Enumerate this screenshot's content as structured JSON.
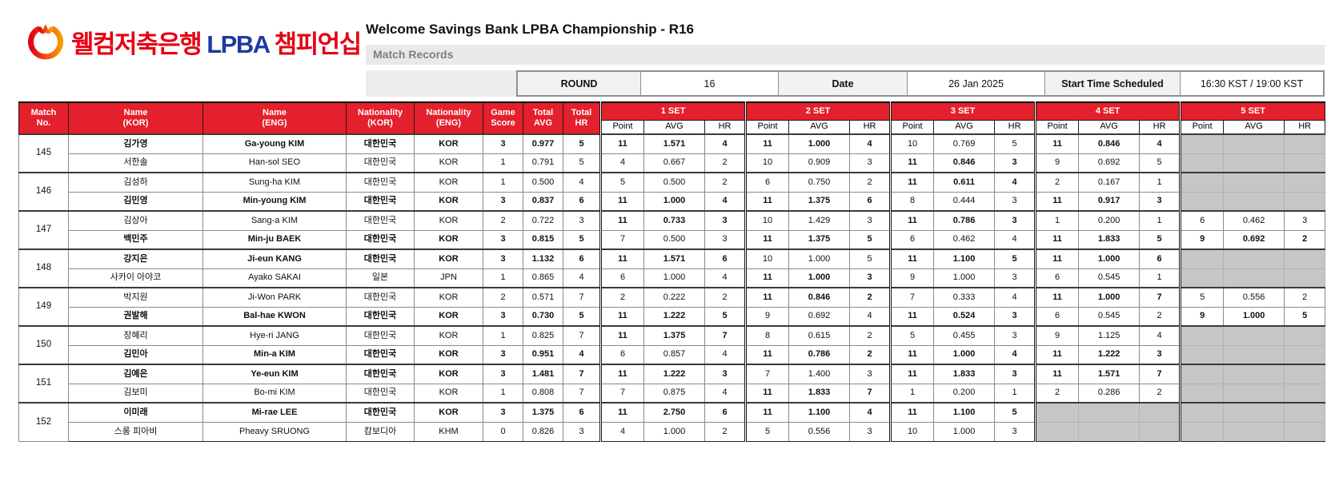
{
  "colors": {
    "header_red": "#e4202c",
    "logo_red": "#e60013",
    "logo_blue": "#1d3aa0",
    "empty_cell_gray": "#c6c6c6",
    "subtitle_gray_bg": "#e9e9e9"
  },
  "logo": {
    "icon": "welcome-bank-w-circle-icon",
    "kor_left": "웰컴저축은행",
    "lpba": "LPBA",
    "kor_right": "챔피언십"
  },
  "header": {
    "title": "Welcome Savings Bank LPBA Championship - R16",
    "subtitle": "Match Records"
  },
  "info_bar": {
    "round_label": "ROUND",
    "round_value": "16",
    "date_label": "Date",
    "date_value": "26 Jan 2025",
    "start_label": "Start Time Scheduled",
    "start_value": "16:30 KST / 19:00 KST"
  },
  "table": {
    "columns": {
      "match_no": "Match\nNo.",
      "name_kor": "Name\n(KOR)",
      "name_eng": "Name\n(ENG)",
      "nat_kor": "Nationality\n(KOR)",
      "nat_eng": "Nationality\n(ENG)",
      "game_score": "Game\nScore",
      "total_avg": "Total\nAVG",
      "total_hr": "Total\nHR"
    },
    "set_headers": [
      "1 SET",
      "2 SET",
      "3 SET",
      "4 SET",
      "5 SET"
    ],
    "sub_headers": [
      "Point",
      "AVG",
      "HR"
    ],
    "matches": [
      {
        "no": "145",
        "players": [
          {
            "name_kor": "김가영",
            "name_eng": "Ga-young KIM",
            "nat_kor": "대한민국",
            "nat_eng": "KOR",
            "game_score": "3",
            "total_avg": "0.977",
            "total_hr": "5",
            "winner": true,
            "sets": [
              {
                "point": "11",
                "avg": "1.571",
                "hr": "4",
                "win": true
              },
              {
                "point": "11",
                "avg": "1.000",
                "hr": "4",
                "win": true
              },
              {
                "point": "10",
                "avg": "0.769",
                "hr": "5",
                "win": false
              },
              {
                "point": "11",
                "avg": "0.846",
                "hr": "4",
                "win": true
              },
              null
            ]
          },
          {
            "name_kor": "서한솔",
            "name_eng": "Han-sol SEO",
            "nat_kor": "대한민국",
            "nat_eng": "KOR",
            "game_score": "1",
            "total_avg": "0.791",
            "total_hr": "5",
            "winner": false,
            "sets": [
              {
                "point": "4",
                "avg": "0.667",
                "hr": "2",
                "win": false
              },
              {
                "point": "10",
                "avg": "0.909",
                "hr": "3",
                "win": false
              },
              {
                "point": "11",
                "avg": "0.846",
                "hr": "3",
                "win": true
              },
              {
                "point": "9",
                "avg": "0.692",
                "hr": "5",
                "win": false
              },
              null
            ]
          }
        ]
      },
      {
        "no": "146",
        "players": [
          {
            "name_kor": "김성하",
            "name_eng": "Sung-ha KIM",
            "nat_kor": "대한민국",
            "nat_eng": "KOR",
            "game_score": "1",
            "total_avg": "0.500",
            "total_hr": "4",
            "winner": false,
            "sets": [
              {
                "point": "5",
                "avg": "0.500",
                "hr": "2",
                "win": false
              },
              {
                "point": "6",
                "avg": "0.750",
                "hr": "2",
                "win": false
              },
              {
                "point": "11",
                "avg": "0.611",
                "hr": "4",
                "win": true
              },
              {
                "point": "2",
                "avg": "0.167",
                "hr": "1",
                "win": false
              },
              null
            ]
          },
          {
            "name_kor": "김민영",
            "name_eng": "Min-young KIM",
            "nat_kor": "대한민국",
            "nat_eng": "KOR",
            "game_score": "3",
            "total_avg": "0.837",
            "total_hr": "6",
            "winner": true,
            "sets": [
              {
                "point": "11",
                "avg": "1.000",
                "hr": "4",
                "win": true
              },
              {
                "point": "11",
                "avg": "1.375",
                "hr": "6",
                "win": true
              },
              {
                "point": "8",
                "avg": "0.444",
                "hr": "3",
                "win": false
              },
              {
                "point": "11",
                "avg": "0.917",
                "hr": "3",
                "win": true
              },
              null
            ]
          }
        ]
      },
      {
        "no": "147",
        "players": [
          {
            "name_kor": "김상아",
            "name_eng": "Sang-a KIM",
            "nat_kor": "대한민국",
            "nat_eng": "KOR",
            "game_score": "2",
            "total_avg": "0.722",
            "total_hr": "3",
            "winner": false,
            "sets": [
              {
                "point": "11",
                "avg": "0.733",
                "hr": "3",
                "win": true
              },
              {
                "point": "10",
                "avg": "1.429",
                "hr": "3",
                "win": false
              },
              {
                "point": "11",
                "avg": "0.786",
                "hr": "3",
                "win": true
              },
              {
                "point": "1",
                "avg": "0.200",
                "hr": "1",
                "win": false
              },
              {
                "point": "6",
                "avg": "0.462",
                "hr": "3",
                "win": false
              }
            ]
          },
          {
            "name_kor": "백민주",
            "name_eng": "Min-ju BAEK",
            "nat_kor": "대한민국",
            "nat_eng": "KOR",
            "game_score": "3",
            "total_avg": "0.815",
            "total_hr": "5",
            "winner": true,
            "sets": [
              {
                "point": "7",
                "avg": "0.500",
                "hr": "3",
                "win": false
              },
              {
                "point": "11",
                "avg": "1.375",
                "hr": "5",
                "win": true
              },
              {
                "point": "6",
                "avg": "0.462",
                "hr": "4",
                "win": false
              },
              {
                "point": "11",
                "avg": "1.833",
                "hr": "5",
                "win": true
              },
              {
                "point": "9",
                "avg": "0.692",
                "hr": "2",
                "win": true
              }
            ]
          }
        ]
      },
      {
        "no": "148",
        "players": [
          {
            "name_kor": "강지은",
            "name_eng": "Ji-eun KANG",
            "nat_kor": "대한민국",
            "nat_eng": "KOR",
            "game_score": "3",
            "total_avg": "1.132",
            "total_hr": "6",
            "winner": true,
            "sets": [
              {
                "point": "11",
                "avg": "1.571",
                "hr": "6",
                "win": true
              },
              {
                "point": "10",
                "avg": "1.000",
                "hr": "5",
                "win": false
              },
              {
                "point": "11",
                "avg": "1.100",
                "hr": "5",
                "win": true
              },
              {
                "point": "11",
                "avg": "1.000",
                "hr": "6",
                "win": true
              },
              null
            ]
          },
          {
            "name_kor": "사카이 아야코",
            "name_eng": "Ayako SAKAI",
            "nat_kor": "일본",
            "nat_eng": "JPN",
            "game_score": "1",
            "total_avg": "0.865",
            "total_hr": "4",
            "winner": false,
            "sets": [
              {
                "point": "6",
                "avg": "1.000",
                "hr": "4",
                "win": false
              },
              {
                "point": "11",
                "avg": "1.000",
                "hr": "3",
                "win": true
              },
              {
                "point": "9",
                "avg": "1.000",
                "hr": "3",
                "win": false
              },
              {
                "point": "6",
                "avg": "0.545",
                "hr": "1",
                "win": false
              },
              null
            ]
          }
        ]
      },
      {
        "no": "149",
        "players": [
          {
            "name_kor": "박지원",
            "name_eng": "Ji-Won PARK",
            "nat_kor": "대한민국",
            "nat_eng": "KOR",
            "game_score": "2",
            "total_avg": "0.571",
            "total_hr": "7",
            "winner": false,
            "sets": [
              {
                "point": "2",
                "avg": "0.222",
                "hr": "2",
                "win": false
              },
              {
                "point": "11",
                "avg": "0.846",
                "hr": "2",
                "win": true
              },
              {
                "point": "7",
                "avg": "0.333",
                "hr": "4",
                "win": false
              },
              {
                "point": "11",
                "avg": "1.000",
                "hr": "7",
                "win": true
              },
              {
                "point": "5",
                "avg": "0.556",
                "hr": "2",
                "win": false
              }
            ]
          },
          {
            "name_kor": "권발해",
            "name_eng": "Bal-hae KWON",
            "nat_kor": "대한민국",
            "nat_eng": "KOR",
            "game_score": "3",
            "total_avg": "0.730",
            "total_hr": "5",
            "winner": true,
            "sets": [
              {
                "point": "11",
                "avg": "1.222",
                "hr": "5",
                "win": true
              },
              {
                "point": "9",
                "avg": "0.692",
                "hr": "4",
                "win": false
              },
              {
                "point": "11",
                "avg": "0.524",
                "hr": "3",
                "win": true
              },
              {
                "point": "6",
                "avg": "0.545",
                "hr": "2",
                "win": false
              },
              {
                "point": "9",
                "avg": "1.000",
                "hr": "5",
                "win": true
              }
            ]
          }
        ]
      },
      {
        "no": "150",
        "players": [
          {
            "name_kor": "장혜리",
            "name_eng": "Hye-ri JANG",
            "nat_kor": "대한민국",
            "nat_eng": "KOR",
            "game_score": "1",
            "total_avg": "0.825",
            "total_hr": "7",
            "winner": false,
            "sets": [
              {
                "point": "11",
                "avg": "1.375",
                "hr": "7",
                "win": true
              },
              {
                "point": "8",
                "avg": "0.615",
                "hr": "2",
                "win": false
              },
              {
                "point": "5",
                "avg": "0.455",
                "hr": "3",
                "win": false
              },
              {
                "point": "9",
                "avg": "1.125",
                "hr": "4",
                "win": false
              },
              null
            ]
          },
          {
            "name_kor": "김민아",
            "name_eng": "Min-a KIM",
            "nat_kor": "대한민국",
            "nat_eng": "KOR",
            "game_score": "3",
            "total_avg": "0.951",
            "total_hr": "4",
            "winner": true,
            "sets": [
              {
                "point": "6",
                "avg": "0.857",
                "hr": "4",
                "win": false
              },
              {
                "point": "11",
                "avg": "0.786",
                "hr": "2",
                "win": true
              },
              {
                "point": "11",
                "avg": "1.000",
                "hr": "4",
                "win": true
              },
              {
                "point": "11",
                "avg": "1.222",
                "hr": "3",
                "win": true
              },
              null
            ]
          }
        ]
      },
      {
        "no": "151",
        "players": [
          {
            "name_kor": "김예은",
            "name_eng": "Ye-eun KIM",
            "nat_kor": "대한민국",
            "nat_eng": "KOR",
            "game_score": "3",
            "total_avg": "1.481",
            "total_hr": "7",
            "winner": true,
            "sets": [
              {
                "point": "11",
                "avg": "1.222",
                "hr": "3",
                "win": true
              },
              {
                "point": "7",
                "avg": "1.400",
                "hr": "3",
                "win": false
              },
              {
                "point": "11",
                "avg": "1.833",
                "hr": "3",
                "win": true
              },
              {
                "point": "11",
                "avg": "1.571",
                "hr": "7",
                "win": true
              },
              null
            ]
          },
          {
            "name_kor": "김보미",
            "name_eng": "Bo-mi KIM",
            "nat_kor": "대한민국",
            "nat_eng": "KOR",
            "game_score": "1",
            "total_avg": "0.808",
            "total_hr": "7",
            "winner": false,
            "sets": [
              {
                "point": "7",
                "avg": "0.875",
                "hr": "4",
                "win": false
              },
              {
                "point": "11",
                "avg": "1.833",
                "hr": "7",
                "win": true
              },
              {
                "point": "1",
                "avg": "0.200",
                "hr": "1",
                "win": false
              },
              {
                "point": "2",
                "avg": "0.286",
                "hr": "2",
                "win": false
              },
              null
            ]
          }
        ]
      },
      {
        "no": "152",
        "players": [
          {
            "name_kor": "이미래",
            "name_eng": "Mi-rae LEE",
            "nat_kor": "대한민국",
            "nat_eng": "KOR",
            "game_score": "3",
            "total_avg": "1.375",
            "total_hr": "6",
            "winner": true,
            "sets": [
              {
                "point": "11",
                "avg": "2.750",
                "hr": "6",
                "win": true
              },
              {
                "point": "11",
                "avg": "1.100",
                "hr": "4",
                "win": true
              },
              {
                "point": "11",
                "avg": "1.100",
                "hr": "5",
                "win": true
              },
              null,
              null
            ]
          },
          {
            "name_kor": "스롱 피아비",
            "name_eng": "Pheavy SRUONG",
            "nat_kor": "캄보디아",
            "nat_eng": "KHM",
            "game_score": "0",
            "total_avg": "0.826",
            "total_hr": "3",
            "winner": false,
            "sets": [
              {
                "point": "4",
                "avg": "1.000",
                "hr": "2",
                "win": false
              },
              {
                "point": "5",
                "avg": "0.556",
                "hr": "3",
                "win": false
              },
              {
                "point": "10",
                "avg": "1.000",
                "hr": "3",
                "win": false
              },
              null,
              null
            ]
          }
        ]
      }
    ]
  }
}
